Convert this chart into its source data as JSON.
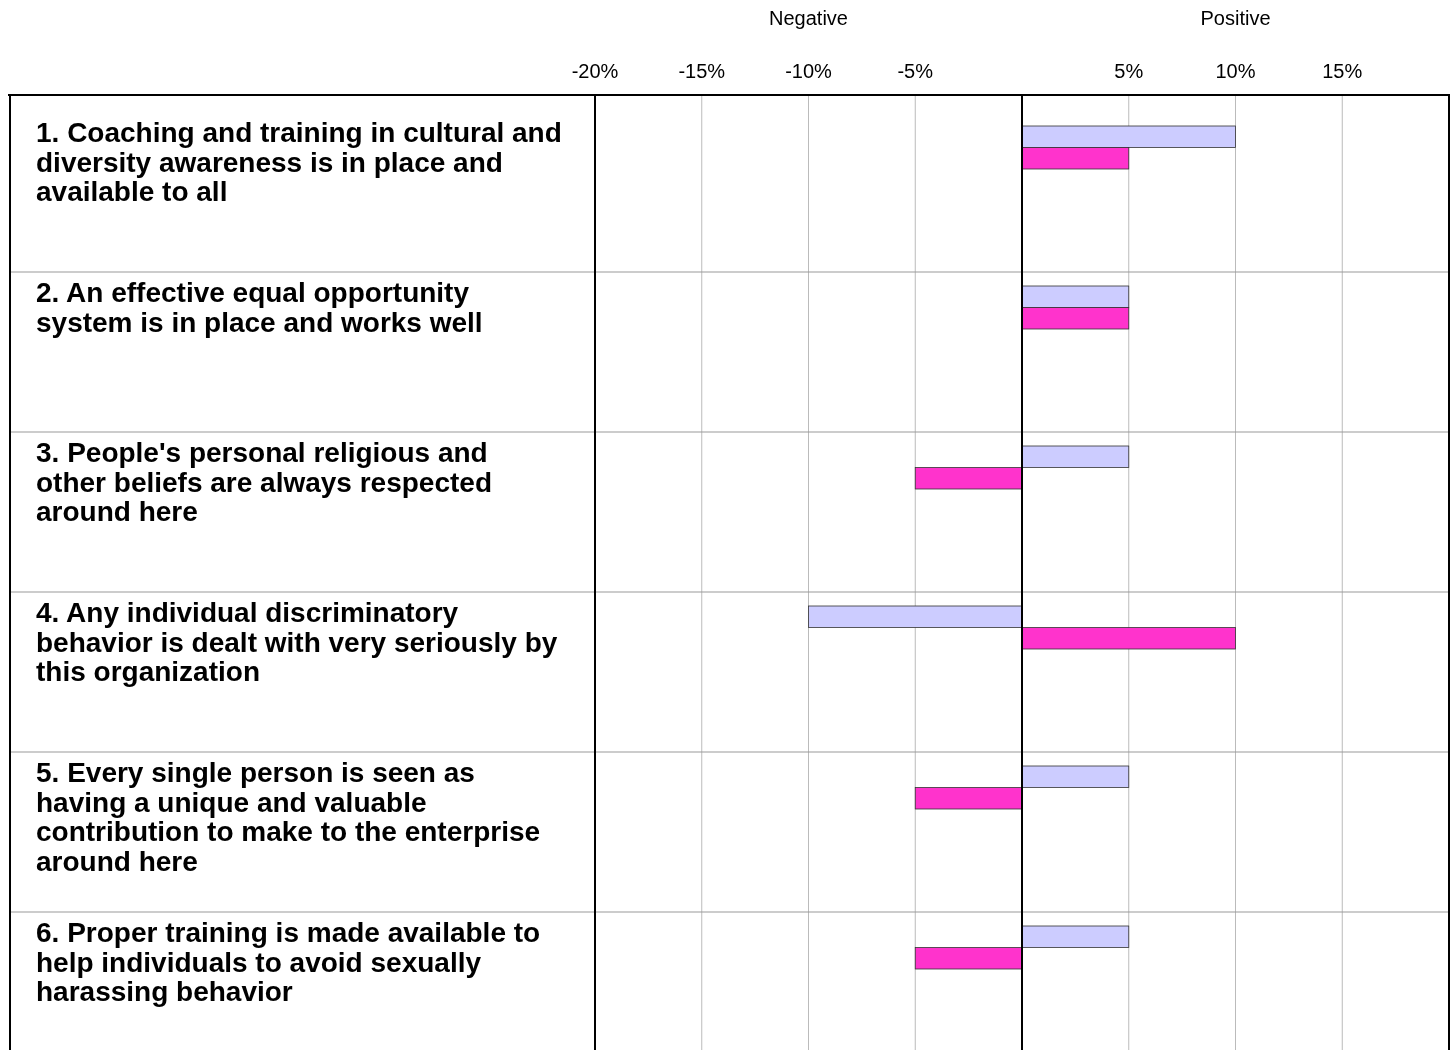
{
  "chart_data": {
    "type": "bar",
    "orientation": "horizontal",
    "categories": [
      "1. Coaching and training in cultural and diversity awareness is in place and available to all",
      "2. An effective equal opportunity system is in place and works well",
      "3. People's personal religious and other beliefs are always respected around here",
      "4. Any individual discriminatory behavior is dealt with very seriously by this organization",
      "5. Every single person is seen as having a unique and valuable contribution to make to the enterprise around here",
      "6. Proper training is made available to help individuals to avoid sexually harassing behavior"
    ],
    "series": [
      {
        "color": "#ccccff",
        "values": [
          10,
          5,
          5,
          -10,
          5,
          5
        ]
      },
      {
        "color": "#ff33cc",
        "values": [
          5,
          5,
          -5,
          10,
          -5,
          -5
        ]
      }
    ],
    "xlim": [
      -20,
      20
    ],
    "xticks": [
      {
        "value": -20,
        "label": "-20%"
      },
      {
        "value": -15,
        "label": "-15%"
      },
      {
        "value": -10,
        "label": "-10%"
      },
      {
        "value": -5,
        "label": "-5%"
      },
      {
        "value": 5,
        "label": "5%"
      },
      {
        "value": 10,
        "label": "10%"
      },
      {
        "value": 15,
        "label": "15%"
      }
    ],
    "grid": "x",
    "ref_lines": [
      {
        "axis": "x",
        "value": 0,
        "color": "#000000"
      }
    ],
    "annotations": [
      "Negative",
      "Positive"
    ]
  }
}
